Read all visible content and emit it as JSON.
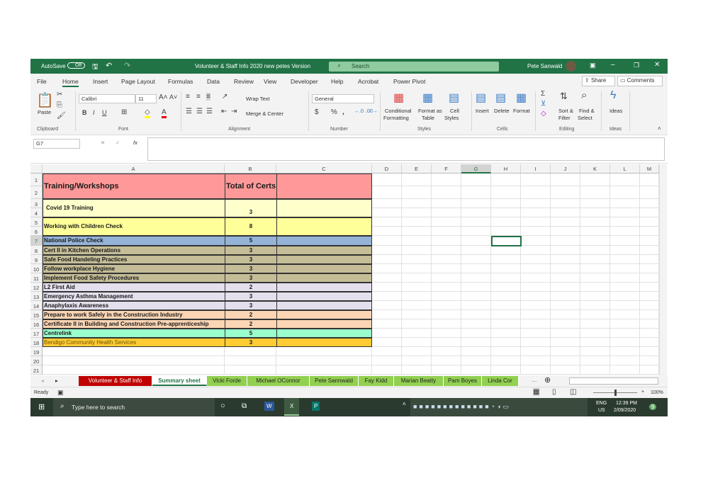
{
  "titlebar": {
    "autosave": "AutoSave",
    "autosave_state": "Off",
    "doc_title": "Volunteer & Staff Info 2020 new petes Version",
    "search": "Search",
    "user": "Pete Sanwald",
    "bg": "#217346"
  },
  "tabs": [
    "File",
    "Home",
    "Insert",
    "Page Layout",
    "Formulas",
    "Data",
    "Review",
    "View",
    "Developer",
    "Help",
    "Acrobat",
    "Power Pivot"
  ],
  "ribbon": {
    "share": "Share",
    "comments": "Comments",
    "paste": "Paste",
    "font_name": "Calibri",
    "font_size": "11",
    "wrap_text": "Wrap Text",
    "merge_center": "Merge & Center",
    "number_format": "General",
    "cond_fmt": "Conditional",
    "cond_fmt2": "Formatting",
    "fmt_table": "Format as",
    "fmt_table2": "Table",
    "cell_styles": "Cell",
    "cell_styles2": "Styles",
    "insert": "Insert",
    "delete": "Delete",
    "format": "Format",
    "sort": "Sort &",
    "sort2": "Filter",
    "find": "Find &",
    "find2": "Select",
    "ideas": "Ideas",
    "groups": [
      "Clipboard",
      "Font",
      "Alignment",
      "Number",
      "Styles",
      "Cells",
      "Editing",
      "Ideas"
    ]
  },
  "formula_bar": {
    "name_box": "G7",
    "fx": "fx",
    "value": ""
  },
  "columns": [
    "A",
    "B",
    "C",
    "D",
    "E",
    "F",
    "G",
    "H",
    "I",
    "J",
    "K",
    "L",
    "M"
  ],
  "row_numbers": [
    "1",
    "2",
    "3",
    "4",
    "5",
    "6",
    "7",
    "8",
    "9",
    "10",
    "11",
    "12",
    "13",
    "14",
    "15",
    "16",
    "17",
    "18",
    "19",
    "20",
    "21"
  ],
  "sheet": {
    "header": {
      "label": "Training/Workshops",
      "value": "Total of Certs",
      "color": "#ff9999"
    },
    "rows": [
      {
        "label": "Covid 19 Training",
        "value": "3",
        "color": "#ffffcc"
      },
      {
        "label": "Working with Children Check",
        "value": "8",
        "color": "#ffff99"
      },
      {
        "label": "National Police Check",
        "value": "5",
        "color": "#95b3d7"
      },
      {
        "label": "Cert II in Kitchen Operations",
        "value": "3",
        "color": "#c4bd97"
      },
      {
        "label": "Safe Food Handeling Practices",
        "value": "3",
        "color": "#c4bd97"
      },
      {
        "label": "Follow workplace Hygiene",
        "value": "3",
        "color": "#c4bd97"
      },
      {
        "label": "Implement Food Safety Procedures",
        "value": "3",
        "color": "#c4bd97"
      },
      {
        "label": "L2 First Aid",
        "value": "2",
        "color": "#e4dfec"
      },
      {
        "label": "Emergency Asthma Management",
        "value": "3",
        "color": "#e4dfec"
      },
      {
        "label": "Anaphylaxis Awareness",
        "value": "3",
        "color": "#e4dfec"
      },
      {
        "label": "Prepare to work Safely in the Construction Industry",
        "value": "2",
        "color": "#fcd5b4"
      },
      {
        "label": "Certificate II in Building and Construction Pre-apprenticeship",
        "value": "2",
        "color": "#fcd5b4"
      },
      {
        "label": "Centrelink",
        "value": "5",
        "color": "#99ffcc"
      },
      {
        "label": "Bendigo Community Health Services",
        "value": "3",
        "color": "#ffcc33"
      }
    ],
    "selected_cell": "G7"
  },
  "sheet_tabs": [
    {
      "label": "Volunteer & Staff Info",
      "color": "#c00000"
    },
    {
      "label": "Summary sheet",
      "color": "#ffffff",
      "active": true
    },
    {
      "label": "Vicki Forde",
      "color": "#92d050"
    },
    {
      "label": "Michael OConnor",
      "color": "#92d050"
    },
    {
      "label": "Pete Sannwald",
      "color": "#92d050"
    },
    {
      "label": "Fay Kidd",
      "color": "#92d050"
    },
    {
      "label": "Marian Beatty",
      "color": "#92d050"
    },
    {
      "label": "Pam Boyes",
      "color": "#92d050"
    },
    {
      "label": "Linda Cor",
      "color": "#92d050"
    }
  ],
  "status": {
    "ready": "Ready",
    "zoom": "100%"
  },
  "taskbar": {
    "search": "Type here to search",
    "lang": "ENG",
    "region": "US",
    "time": "12:39 PM",
    "date": "2/09/2020",
    "notifications": "9"
  }
}
